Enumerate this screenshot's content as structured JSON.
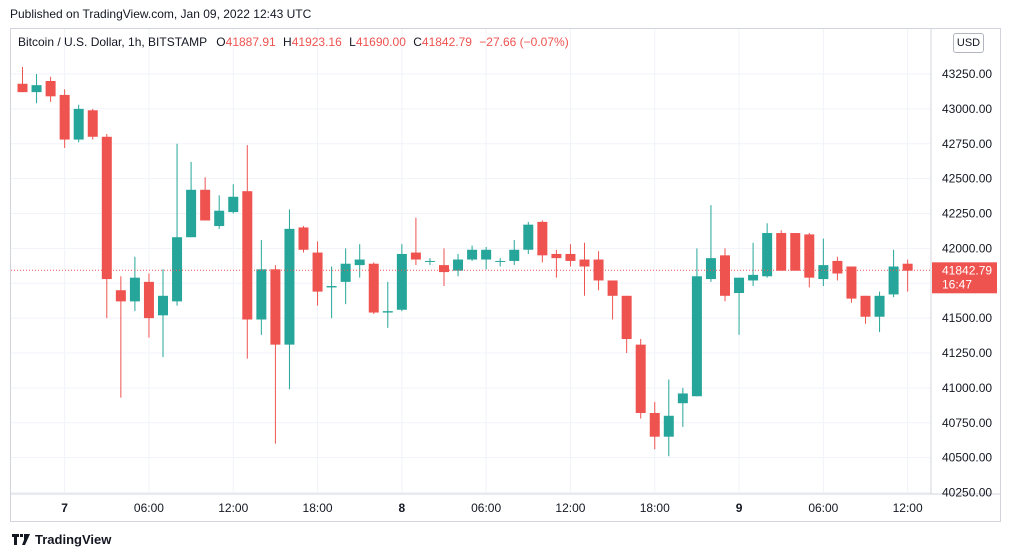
{
  "header": {
    "published": "Published on TradingView.com, Jan 09, 2022 12:43 UTC"
  },
  "legend": {
    "symbol": "Bitcoin / U.S. Dollar, 1h, BITSTAMP",
    "o_label": "O",
    "o_value": "41887.91",
    "h_label": "H",
    "h_value": "41923.16",
    "l_label": "L",
    "l_value": "41690.00",
    "c_label": "C",
    "c_value": "41842.79",
    "change": "−27.66 (−0.07%)"
  },
  "currency_button": "USD",
  "price_label": {
    "price": "41842.79",
    "countdown": "16:47"
  },
  "footer": {
    "brand": "TradingView",
    "logo_icon": "tradingview-logo-icon"
  },
  "colors": {
    "up": "#26a69a",
    "down": "#ef5350",
    "grid": "#f0f3fa",
    "axis_text": "#131722"
  },
  "chart_data": {
    "type": "candlestick",
    "y_axis": {
      "ticks": [
        "43250.00",
        "43000.00",
        "42750.00",
        "42500.00",
        "42250.00",
        "42000.00",
        "41750.00",
        "41500.00",
        "41250.00",
        "41000.00",
        "40750.00",
        "40500.00",
        "40250.00"
      ],
      "range": [
        40250,
        43350
      ]
    },
    "x_axis": {
      "ticks": [
        {
          "label": "7",
          "bold": true,
          "index": 3
        },
        {
          "label": "06:00",
          "bold": false,
          "index": 9
        },
        {
          "label": "12:00",
          "bold": false,
          "index": 15
        },
        {
          "label": "18:00",
          "bold": false,
          "index": 21
        },
        {
          "label": "8",
          "bold": true,
          "index": 27
        },
        {
          "label": "06:00",
          "bold": false,
          "index": 33
        },
        {
          "label": "12:00",
          "bold": false,
          "index": 39
        },
        {
          "label": "18:00",
          "bold": false,
          "index": 45
        },
        {
          "label": "9",
          "bold": true,
          "index": 51
        },
        {
          "label": "06:00",
          "bold": false,
          "index": 57
        },
        {
          "label": "12:00",
          "bold": false,
          "index": 63
        }
      ]
    },
    "last_price": 41842.79,
    "candles": [
      {
        "o": 43180,
        "h": 43300,
        "l": 43120,
        "c": 43120
      },
      {
        "o": 43120,
        "h": 43250,
        "l": 43040,
        "c": 43170
      },
      {
        "o": 43200,
        "h": 43230,
        "l": 43050,
        "c": 43090
      },
      {
        "o": 43100,
        "h": 43140,
        "l": 42720,
        "c": 42780
      },
      {
        "o": 42780,
        "h": 43030,
        "l": 42760,
        "c": 43000
      },
      {
        "o": 42990,
        "h": 43000,
        "l": 42780,
        "c": 42800
      },
      {
        "o": 42800,
        "h": 42820,
        "l": 41500,
        "c": 41780
      },
      {
        "o": 41700,
        "h": 41800,
        "l": 40930,
        "c": 41620
      },
      {
        "o": 41620,
        "h": 41940,
        "l": 41550,
        "c": 41790
      },
      {
        "o": 41760,
        "h": 41820,
        "l": 41360,
        "c": 41500
      },
      {
        "o": 41520,
        "h": 41850,
        "l": 41220,
        "c": 41660
      },
      {
        "o": 41620,
        "h": 42750,
        "l": 41590,
        "c": 42080
      },
      {
        "o": 42080,
        "h": 42620,
        "l": 42080,
        "c": 42420
      },
      {
        "o": 42420,
        "h": 42510,
        "l": 42200,
        "c": 42200
      },
      {
        "o": 42160,
        "h": 42380,
        "l": 42140,
        "c": 42270
      },
      {
        "o": 42260,
        "h": 42460,
        "l": 42250,
        "c": 42370
      },
      {
        "o": 42410,
        "h": 42740,
        "l": 41210,
        "c": 41490
      },
      {
        "o": 41490,
        "h": 42060,
        "l": 41380,
        "c": 41850
      },
      {
        "o": 41850,
        "h": 41880,
        "l": 40600,
        "c": 41310
      },
      {
        "o": 41310,
        "h": 42280,
        "l": 40990,
        "c": 42140
      },
      {
        "o": 42150,
        "h": 42160,
        "l": 41970,
        "c": 41990
      },
      {
        "o": 41970,
        "h": 42050,
        "l": 41590,
        "c": 41690
      },
      {
        "o": 41720,
        "h": 41870,
        "l": 41500,
        "c": 41730
      },
      {
        "o": 41760,
        "h": 42000,
        "l": 41600,
        "c": 41890
      },
      {
        "o": 41880,
        "h": 42030,
        "l": 41790,
        "c": 41920
      },
      {
        "o": 41890,
        "h": 41900,
        "l": 41530,
        "c": 41540
      },
      {
        "o": 41540,
        "h": 41760,
        "l": 41430,
        "c": 41550
      },
      {
        "o": 41560,
        "h": 42030,
        "l": 41550,
        "c": 41960
      },
      {
        "o": 41970,
        "h": 42220,
        "l": 41880,
        "c": 41920
      },
      {
        "o": 41910,
        "h": 41930,
        "l": 41880,
        "c": 41910
      },
      {
        "o": 41880,
        "h": 42000,
        "l": 41730,
        "c": 41830
      },
      {
        "o": 41840,
        "h": 41960,
        "l": 41800,
        "c": 41920
      },
      {
        "o": 41920,
        "h": 42020,
        "l": 41910,
        "c": 41990
      },
      {
        "o": 41920,
        "h": 42010,
        "l": 41850,
        "c": 41990
      },
      {
        "o": 41910,
        "h": 41930,
        "l": 41870,
        "c": 41910
      },
      {
        "o": 41910,
        "h": 42060,
        "l": 41880,
        "c": 41990
      },
      {
        "o": 41990,
        "h": 42190,
        "l": 41960,
        "c": 42170
      },
      {
        "o": 42190,
        "h": 42200,
        "l": 41900,
        "c": 41950
      },
      {
        "o": 41960,
        "h": 41990,
        "l": 41790,
        "c": 41930
      },
      {
        "o": 41960,
        "h": 42030,
        "l": 41870,
        "c": 41910
      },
      {
        "o": 41920,
        "h": 42040,
        "l": 41660,
        "c": 41870
      },
      {
        "o": 41920,
        "h": 41980,
        "l": 41700,
        "c": 41770
      },
      {
        "o": 41770,
        "h": 41770,
        "l": 41490,
        "c": 41660
      },
      {
        "o": 41660,
        "h": 41660,
        "l": 41250,
        "c": 41350
      },
      {
        "o": 41310,
        "h": 41350,
        "l": 40780,
        "c": 40820
      },
      {
        "o": 40820,
        "h": 40900,
        "l": 40560,
        "c": 40650
      },
      {
        "o": 40650,
        "h": 41060,
        "l": 40510,
        "c": 40800
      },
      {
        "o": 40890,
        "h": 41000,
        "l": 40720,
        "c": 40960
      },
      {
        "o": 40940,
        "h": 42000,
        "l": 40940,
        "c": 41800
      },
      {
        "o": 41780,
        "h": 42310,
        "l": 41760,
        "c": 41930
      },
      {
        "o": 41950,
        "h": 42000,
        "l": 41620,
        "c": 41660
      },
      {
        "o": 41680,
        "h": 41780,
        "l": 41380,
        "c": 41790
      },
      {
        "o": 41770,
        "h": 42040,
        "l": 41730,
        "c": 41810
      },
      {
        "o": 41800,
        "h": 42180,
        "l": 41790,
        "c": 42110
      },
      {
        "o": 42110,
        "h": 42130,
        "l": 41840,
        "c": 41840
      },
      {
        "o": 42110,
        "h": 42110,
        "l": 41840,
        "c": 41840
      },
      {
        "o": 42100,
        "h": 42110,
        "l": 41720,
        "c": 41790
      },
      {
        "o": 41780,
        "h": 42070,
        "l": 41730,
        "c": 41880
      },
      {
        "o": 41910,
        "h": 41940,
        "l": 41770,
        "c": 41820
      },
      {
        "o": 41870,
        "h": 41870,
        "l": 41610,
        "c": 41640
      },
      {
        "o": 41660,
        "h": 41660,
        "l": 41460,
        "c": 41510
      },
      {
        "o": 41510,
        "h": 41690,
        "l": 41400,
        "c": 41660
      },
      {
        "o": 41670,
        "h": 41990,
        "l": 41650,
        "c": 41870
      },
      {
        "o": 41890,
        "h": 41920,
        "l": 41690,
        "c": 41840
      }
    ]
  }
}
